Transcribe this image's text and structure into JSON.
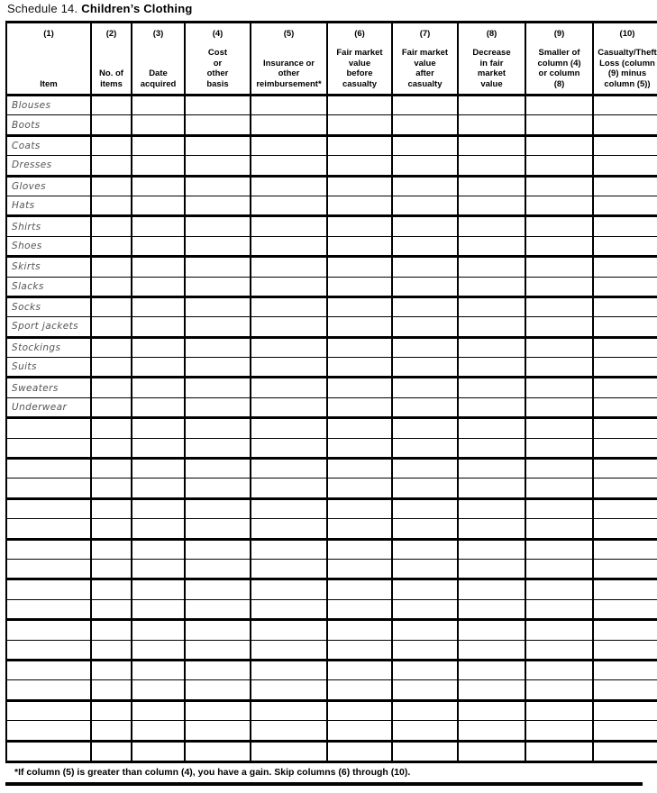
{
  "page": {
    "title_prefix": "Schedule 14.",
    "title_main": "Children’s Clothing",
    "footnote": "*If column (5) is greater than column (4), you have a gain. Skip columns (6) through (10)."
  },
  "table": {
    "columns": [
      {
        "number": "(1)",
        "label": "Item"
      },
      {
        "number": "(2)",
        "label": "No. of\nitems"
      },
      {
        "number": "(3)",
        "label": "Date\nacquired"
      },
      {
        "number": "(4)",
        "label": "Cost\nor\nother\nbasis"
      },
      {
        "number": "(5)",
        "label": "Insurance or\nother\nreimbursement*"
      },
      {
        "number": "(6)",
        "label": "Fair market\nvalue\nbefore\ncasualty"
      },
      {
        "number": "(7)",
        "label": "Fair market\nvalue\nafter\ncasualty"
      },
      {
        "number": "(8)",
        "label": "Decrease\nin fair\nmarket\nvalue"
      },
      {
        "number": "(9)",
        "label": "Smaller of\ncolumn (4)\nor column\n(8)"
      },
      {
        "number": "(10)",
        "label": "Casualty/Theft\nLoss (column\n(9) minus\ncolumn (5))"
      }
    ],
    "items": [
      "Blouses",
      "Boots",
      "Coats",
      "Dresses",
      "Gloves",
      "Hats",
      "Shirts",
      "Shoes",
      "Skirts",
      "Slacks",
      "Socks",
      "Sport jackets",
      "Stockings",
      "Suits",
      "Sweaters",
      "Underwear"
    ],
    "empty_row_count": 17,
    "cell_value_default": ""
  }
}
